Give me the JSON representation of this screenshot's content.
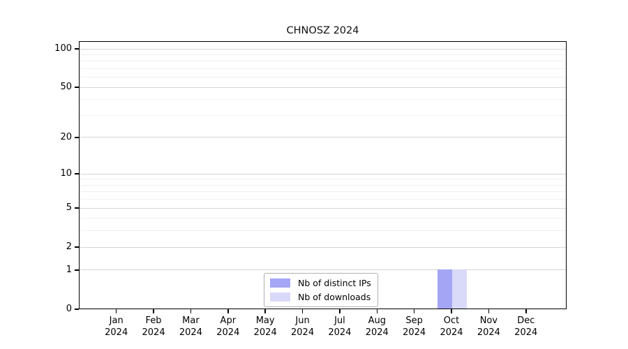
{
  "chart_data": {
    "type": "bar",
    "title": "CHNOSZ 2024",
    "xlabel": "",
    "ylabel": "",
    "y_scale": "log1p",
    "ylim": [
      0,
      115
    ],
    "grid": true,
    "legend_position": "bottom-center",
    "categories": [
      {
        "label": "Jan",
        "sublabel": "2024"
      },
      {
        "label": "Feb",
        "sublabel": "2024"
      },
      {
        "label": "Mar",
        "sublabel": "2024"
      },
      {
        "label": "Apr",
        "sublabel": "2024"
      },
      {
        "label": "May",
        "sublabel": "2024"
      },
      {
        "label": "Jun",
        "sublabel": "2024"
      },
      {
        "label": "Jul",
        "sublabel": "2024"
      },
      {
        "label": "Aug",
        "sublabel": "2024"
      },
      {
        "label": "Sep",
        "sublabel": "2024"
      },
      {
        "label": "Oct",
        "sublabel": "2024"
      },
      {
        "label": "Nov",
        "sublabel": "2024"
      },
      {
        "label": "Dec",
        "sublabel": "2024"
      }
    ],
    "series": [
      {
        "name": "Nb of distinct IPs",
        "color": "#a5a5f6",
        "values": [
          0,
          0,
          0,
          0,
          0,
          0,
          0,
          0,
          0,
          1,
          0,
          0
        ]
      },
      {
        "name": "Nb of downloads",
        "color": "#d9d9f9",
        "values": [
          0,
          0,
          0,
          0,
          0,
          0,
          0,
          0,
          0,
          1,
          0,
          0
        ]
      }
    ],
    "y_ticks": [
      0,
      1,
      2,
      5,
      10,
      20,
      50,
      100
    ],
    "y_minor_gridlines": [
      3,
      4,
      6,
      7,
      8,
      9,
      30,
      40,
      60,
      70,
      80,
      90
    ],
    "colors": {
      "axis": "#000000",
      "grid_major": "#d4d4d4",
      "grid_minor": "#f0f0f0",
      "legend_border": "#b0b0b0"
    }
  }
}
